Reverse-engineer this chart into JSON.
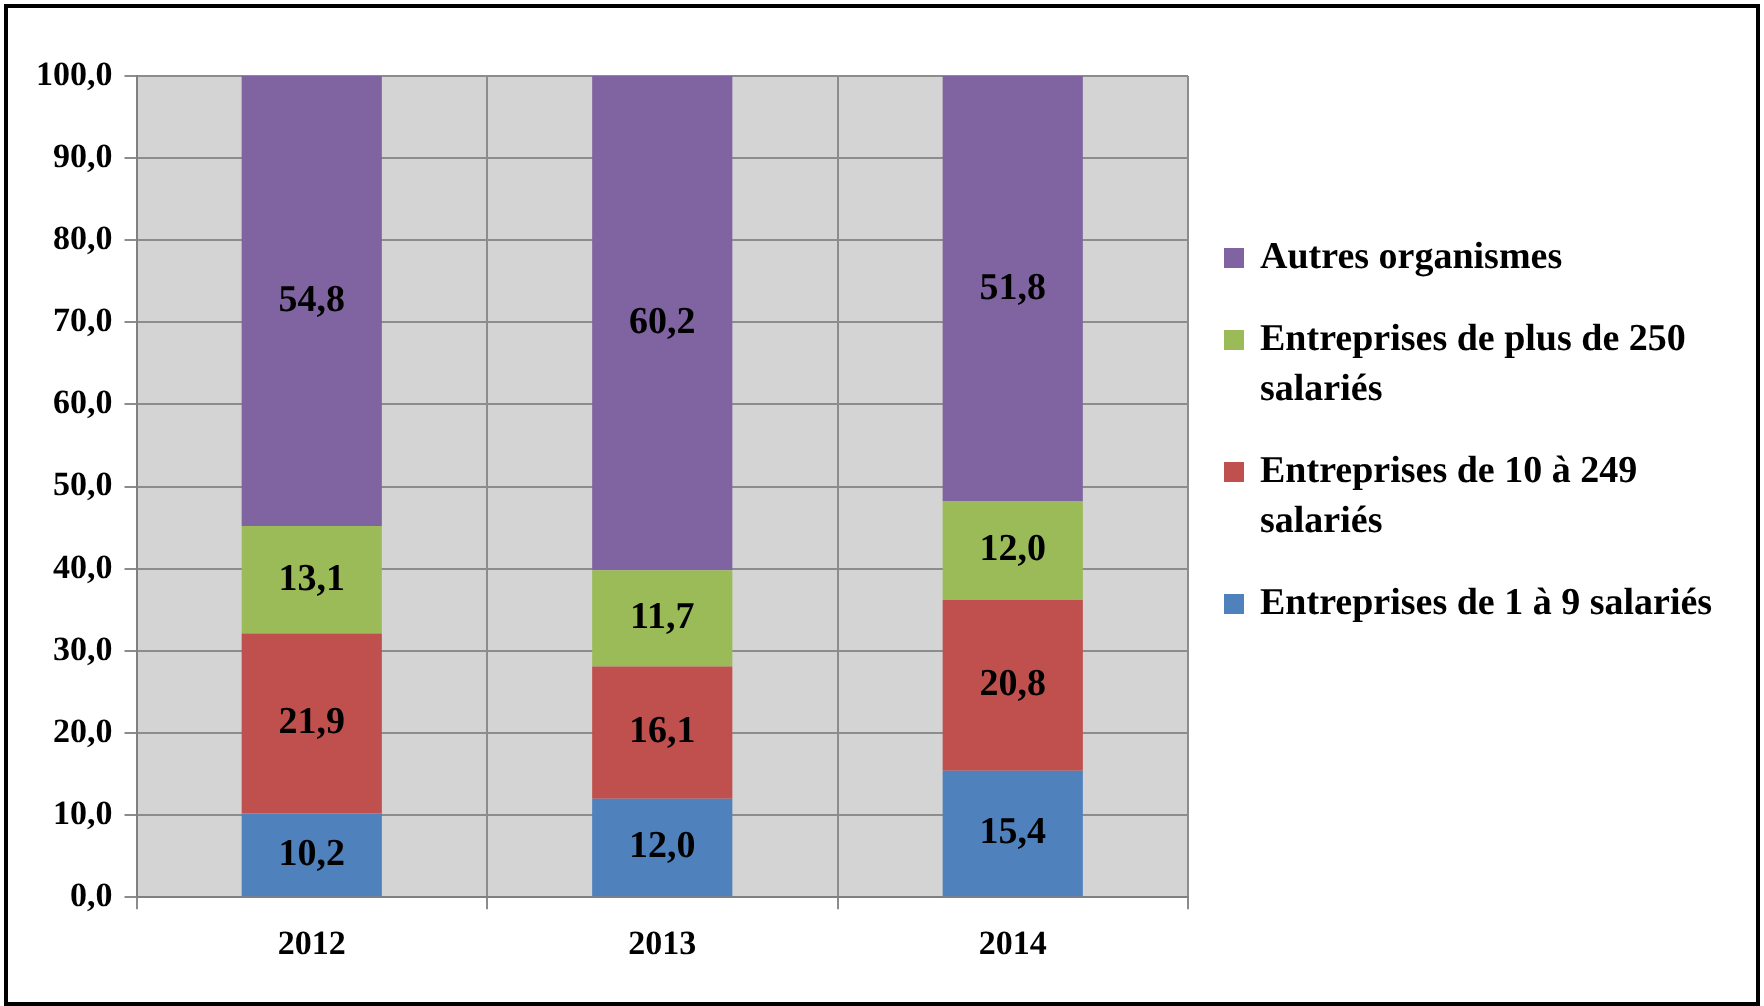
{
  "chart_data": {
    "type": "bar",
    "stacked": true,
    "categories": [
      "2012",
      "2013",
      "2014"
    ],
    "series": [
      {
        "name": "Entreprises de 1 à 9 salariés",
        "color": "#4f81bd",
        "values": [
          10.2,
          12.0,
          15.4
        ],
        "value_labels": [
          "10,2",
          "12,0",
          "15,4"
        ]
      },
      {
        "name": "Entreprises de 10 à 249 salariés",
        "color": "#c0504d",
        "values": [
          21.9,
          16.1,
          20.8
        ],
        "value_labels": [
          "21,9",
          "16,1",
          "20,8"
        ]
      },
      {
        "name": "Entreprises de plus de 250 salariés",
        "color": "#9bbb59",
        "values": [
          13.1,
          11.7,
          12.0
        ],
        "value_labels": [
          "13,1",
          "11,7",
          "12,0"
        ]
      },
      {
        "name": "Autres organismes",
        "color": "#8064a2",
        "values": [
          54.8,
          60.2,
          51.8
        ],
        "value_labels": [
          "54,8",
          "60,2",
          "51,8"
        ]
      }
    ],
    "ylim": [
      0,
      100
    ],
    "yticks": [
      {
        "value": 0,
        "label": "0,0"
      },
      {
        "value": 10,
        "label": "10,0"
      },
      {
        "value": 20,
        "label": "20,0"
      },
      {
        "value": 30,
        "label": "30,0"
      },
      {
        "value": 40,
        "label": "40,0"
      },
      {
        "value": 50,
        "label": "50,0"
      },
      {
        "value": 60,
        "label": "60,0"
      },
      {
        "value": 70,
        "label": "70,0"
      },
      {
        "value": 80,
        "label": "80,0"
      },
      {
        "value": 90,
        "label": "90,0"
      },
      {
        "value": 100,
        "label": "100,0"
      }
    ],
    "grid": true,
    "legend": "right"
  }
}
